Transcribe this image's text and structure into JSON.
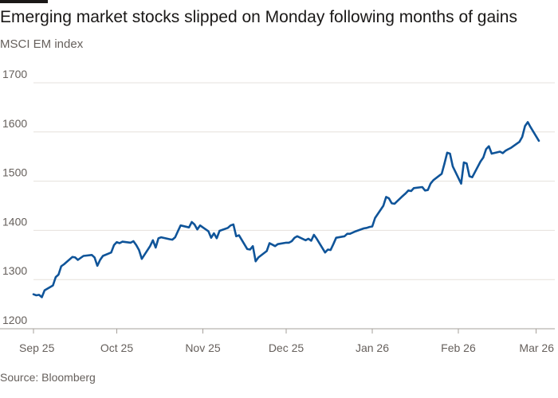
{
  "header": {
    "title": "Emerging market stocks slipped on Monday following months of gains",
    "subtitle": "MSCI EM index"
  },
  "footer": {
    "source": "Source: Bloomberg"
  },
  "colors": {
    "line": "#0f5499",
    "grid": "#e6e1dc",
    "axis": "#a6a09b"
  },
  "chart_data": {
    "type": "line",
    "title": "Emerging market stocks slipped on Monday following months of gains",
    "subtitle": "MSCI EM index",
    "xlabel": "",
    "ylabel": "",
    "ylim": [
      1200,
      1700
    ],
    "yticks": [
      1200,
      1300,
      1400,
      1500,
      1600,
      1700
    ],
    "grid": true,
    "legend": "none",
    "xlim": [
      "2025-09-01",
      "2026-03-02"
    ],
    "xticks": [
      {
        "date": "2025-09-01",
        "label": "Sep 25"
      },
      {
        "date": "2025-10-01",
        "label": "Oct 25"
      },
      {
        "date": "2025-11-01",
        "label": "Nov 25"
      },
      {
        "date": "2025-12-01",
        "label": "Dec 25"
      },
      {
        "date": "2026-01-01",
        "label": "Jan 26"
      },
      {
        "date": "2026-02-01",
        "label": "Feb 26"
      },
      {
        "date": "2026-03-01",
        "label": "Mar 26"
      }
    ],
    "series": [
      {
        "name": "",
        "points": [
          [
            "2025-09-01",
            1270
          ],
          [
            "2025-09-02",
            1268
          ],
          [
            "2025-09-03",
            1269
          ],
          [
            "2025-09-04",
            1264
          ],
          [
            "2025-09-05",
            1278
          ],
          [
            "2025-09-08",
            1288
          ],
          [
            "2025-09-09",
            1305
          ],
          [
            "2025-09-10",
            1310
          ],
          [
            "2025-09-11",
            1327
          ],
          [
            "2025-09-12",
            1331
          ],
          [
            "2025-09-15",
            1346
          ],
          [
            "2025-09-16",
            1345
          ],
          [
            "2025-09-17",
            1340
          ],
          [
            "2025-09-18",
            1344
          ],
          [
            "2025-09-19",
            1348
          ],
          [
            "2025-09-22",
            1350
          ],
          [
            "2025-09-23",
            1345
          ],
          [
            "2025-09-24",
            1328
          ],
          [
            "2025-09-25",
            1340
          ],
          [
            "2025-09-26",
            1348
          ],
          [
            "2025-09-29",
            1355
          ],
          [
            "2025-09-30",
            1370
          ],
          [
            "2025-10-01",
            1376
          ],
          [
            "2025-10-02",
            1374
          ],
          [
            "2025-10-03",
            1377
          ],
          [
            "2025-10-06",
            1375
          ],
          [
            "2025-10-07",
            1378
          ],
          [
            "2025-10-08",
            1370
          ],
          [
            "2025-10-09",
            1360
          ],
          [
            "2025-10-10",
            1342
          ],
          [
            "2025-10-13",
            1368
          ],
          [
            "2025-10-14",
            1380
          ],
          [
            "2025-10-15",
            1365
          ],
          [
            "2025-10-16",
            1384
          ],
          [
            "2025-10-17",
            1386
          ],
          [
            "2025-10-20",
            1382
          ],
          [
            "2025-10-21",
            1381
          ],
          [
            "2025-10-22",
            1386
          ],
          [
            "2025-10-23",
            1398
          ],
          [
            "2025-10-24",
            1410
          ],
          [
            "2025-10-27",
            1406
          ],
          [
            "2025-10-28",
            1417
          ],
          [
            "2025-10-29",
            1412
          ],
          [
            "2025-10-30",
            1402
          ],
          [
            "2025-10-31",
            1410
          ],
          [
            "2025-11-03",
            1398
          ],
          [
            "2025-11-04",
            1385
          ],
          [
            "2025-11-05",
            1394
          ],
          [
            "2025-11-06",
            1384
          ],
          [
            "2025-11-07",
            1399
          ],
          [
            "2025-11-10",
            1405
          ],
          [
            "2025-11-11",
            1410
          ],
          [
            "2025-11-12",
            1412
          ],
          [
            "2025-11-13",
            1388
          ],
          [
            "2025-11-14",
            1390
          ],
          [
            "2025-11-17",
            1362
          ],
          [
            "2025-11-18",
            1361
          ],
          [
            "2025-11-19",
            1368
          ],
          [
            "2025-11-20",
            1337
          ],
          [
            "2025-11-21",
            1345
          ],
          [
            "2025-11-24",
            1358
          ],
          [
            "2025-11-25",
            1374
          ],
          [
            "2025-11-26",
            1371
          ],
          [
            "2025-11-27",
            1368
          ],
          [
            "2025-11-28",
            1372
          ],
          [
            "2025-12-01",
            1375
          ],
          [
            "2025-12-02",
            1375
          ],
          [
            "2025-12-03",
            1378
          ],
          [
            "2025-12-04",
            1385
          ],
          [
            "2025-12-05",
            1388
          ],
          [
            "2025-12-08",
            1380
          ],
          [
            "2025-12-09",
            1383
          ],
          [
            "2025-12-10",
            1379
          ],
          [
            "2025-12-11",
            1391
          ],
          [
            "2025-12-12",
            1383
          ],
          [
            "2025-12-15",
            1355
          ],
          [
            "2025-12-16",
            1361
          ],
          [
            "2025-12-17",
            1360
          ],
          [
            "2025-12-18",
            1372
          ],
          [
            "2025-12-19",
            1385
          ],
          [
            "2025-12-22",
            1388
          ],
          [
            "2025-12-23",
            1393
          ],
          [
            "2025-12-24",
            1393
          ],
          [
            "2025-12-26",
            1398
          ],
          [
            "2025-12-29",
            1404
          ],
          [
            "2025-12-30",
            1405
          ],
          [
            "2025-12-31",
            1407
          ],
          [
            "2026-01-01",
            1408
          ],
          [
            "2026-01-02",
            1425
          ],
          [
            "2026-01-05",
            1450
          ],
          [
            "2026-01-06",
            1468
          ],
          [
            "2026-01-07",
            1465
          ],
          [
            "2026-01-08",
            1455
          ],
          [
            "2026-01-09",
            1454
          ],
          [
            "2026-01-12",
            1470
          ],
          [
            "2026-01-13",
            1475
          ],
          [
            "2026-01-14",
            1481
          ],
          [
            "2026-01-15",
            1480
          ],
          [
            "2026-01-16",
            1486
          ],
          [
            "2026-01-19",
            1488
          ],
          [
            "2026-01-20",
            1481
          ],
          [
            "2026-01-21",
            1482
          ],
          [
            "2026-01-22",
            1495
          ],
          [
            "2026-01-23",
            1502
          ],
          [
            "2026-01-26",
            1515
          ],
          [
            "2026-01-27",
            1536
          ],
          [
            "2026-01-28",
            1558
          ],
          [
            "2026-01-29",
            1556
          ],
          [
            "2026-01-30",
            1530
          ],
          [
            "2026-02-02",
            1495
          ],
          [
            "2026-02-03",
            1538
          ],
          [
            "2026-02-04",
            1536
          ],
          [
            "2026-02-05",
            1510
          ],
          [
            "2026-02-06",
            1508
          ],
          [
            "2026-02-09",
            1540
          ],
          [
            "2026-02-10",
            1548
          ],
          [
            "2026-02-11",
            1565
          ],
          [
            "2026-02-12",
            1571
          ],
          [
            "2026-02-13",
            1556
          ],
          [
            "2026-02-16",
            1560
          ],
          [
            "2026-02-17",
            1557
          ],
          [
            "2026-02-18",
            1562
          ],
          [
            "2026-02-19",
            1565
          ],
          [
            "2026-02-20",
            1568
          ],
          [
            "2026-02-23",
            1580
          ],
          [
            "2026-02-24",
            1590
          ],
          [
            "2026-02-25",
            1612
          ],
          [
            "2026-02-26",
            1620
          ],
          [
            "2026-02-27",
            1610
          ],
          [
            "2026-03-02",
            1582
          ]
        ]
      }
    ]
  }
}
